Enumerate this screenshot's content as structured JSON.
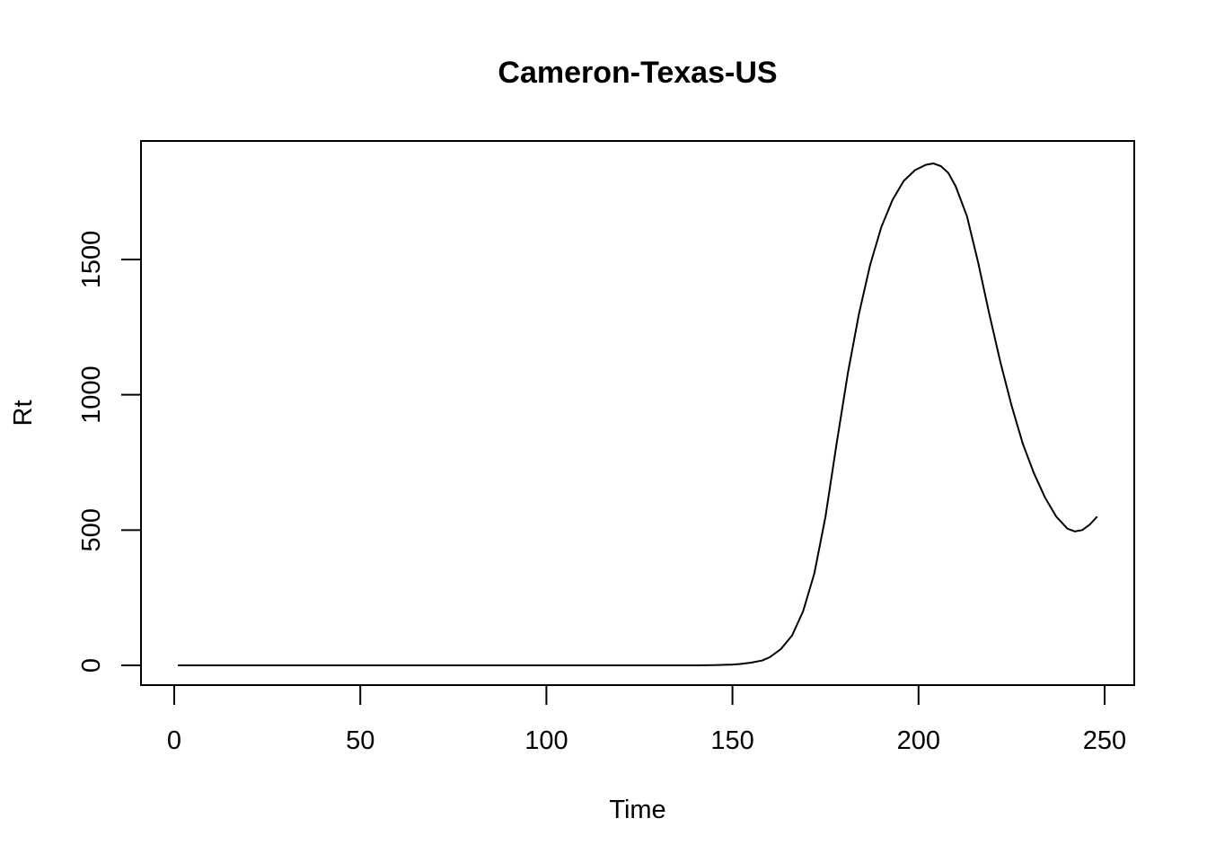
{
  "chart_data": {
    "type": "line",
    "title": "Cameron-Texas-US",
    "xlabel": "Time",
    "ylabel": "Rt",
    "xlim": [
      0,
      250
    ],
    "ylim": [
      0,
      1850
    ],
    "xticks": [
      0,
      50,
      100,
      150,
      200,
      250
    ],
    "yticks": [
      0,
      500,
      1000,
      1500
    ],
    "grid": false,
    "legend": "none",
    "line_color": "#000000",
    "series": [
      {
        "x": [
          1,
          20,
          40,
          60,
          80,
          100,
          120,
          140,
          145,
          150,
          152,
          155,
          158,
          160,
          163,
          166,
          169,
          172,
          175,
          178,
          181,
          184,
          187,
          190,
          193,
          196,
          199,
          202,
          204,
          206,
          208,
          210,
          213,
          216,
          219,
          222,
          225,
          228,
          231,
          234,
          237,
          240,
          242,
          244,
          246,
          248
        ],
        "y": [
          0,
          0,
          0,
          0,
          0,
          0,
          0,
          0,
          1,
          3,
          5,
          10,
          18,
          30,
          60,
          110,
          200,
          340,
          550,
          820,
          1080,
          1300,
          1480,
          1620,
          1720,
          1790,
          1830,
          1850,
          1855,
          1845,
          1820,
          1770,
          1660,
          1490,
          1300,
          1120,
          960,
          820,
          710,
          620,
          550,
          505,
          495,
          500,
          520,
          550
        ]
      }
    ]
  }
}
